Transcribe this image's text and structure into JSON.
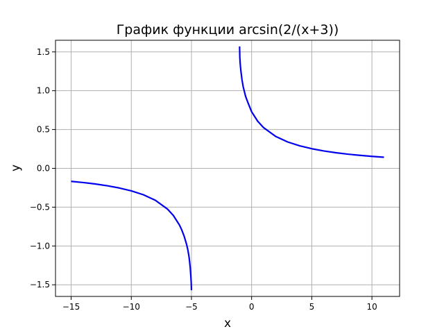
{
  "chart_data": {
    "type": "line",
    "title": "График функции arcsin(2/(x+3))",
    "xlabel": "x",
    "ylabel": "y",
    "xlim": [
      -16.3,
      12.3
    ],
    "ylim": [
      -1.65,
      1.65
    ],
    "xticks": [
      -15,
      -10,
      -5,
      0,
      5,
      10
    ],
    "xtick_labels": [
      "−15",
      "−10",
      "−5",
      "0",
      "5",
      "10"
    ],
    "yticks": [
      -1.5,
      -1.0,
      -0.5,
      0.0,
      0.5,
      1.0,
      1.5
    ],
    "ytick_labels": [
      "−1.5",
      "−1.0",
      "−0.5",
      "0.0",
      "0.5",
      "1.0",
      "1.5"
    ],
    "grid": true,
    "series": [
      {
        "color": "#0000ee",
        "x": [
          -15,
          -14,
          -13,
          -12,
          -11,
          -10,
          -9,
          -8,
          -7,
          -6.5,
          -6,
          -5.8,
          -5.6,
          -5.4,
          -5.3,
          -5.2,
          -5.15,
          -5.1,
          -5.05,
          -5.02,
          -5.0
        ],
        "y": [
          -0.1674,
          -0.1826,
          -0.2014,
          -0.2241,
          -0.2527,
          -0.2898,
          -0.3398,
          -0.4115,
          -0.5236,
          -0.6082,
          -0.7297,
          -0.7956,
          -0.8776,
          -0.9826,
          -1.0494,
          -1.1411,
          -1.2073,
          -1.284,
          -1.3931,
          -1.4708,
          -1.5708
        ]
      },
      {
        "color": "#0000ee",
        "x": [
          -1.0,
          -0.98,
          -0.95,
          -0.9,
          -0.8,
          -0.7,
          -0.5,
          -0.3,
          0,
          0.5,
          1,
          2,
          3,
          4,
          5,
          6,
          7,
          8,
          9,
          10,
          11
        ],
        "y": [
          1.5708,
          1.428,
          1.3513,
          1.2661,
          1.1411,
          1.051,
          0.9273,
          0.8442,
          0.7297,
          0.6082,
          0.5236,
          0.4115,
          0.3398,
          0.2898,
          0.2527,
          0.2241,
          0.2014,
          0.1826,
          0.1674,
          0.1542,
          0.1433
        ]
      }
    ]
  }
}
